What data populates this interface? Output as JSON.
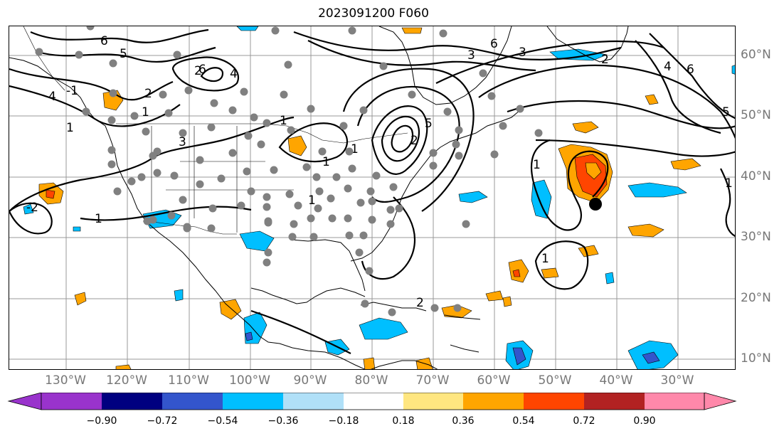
{
  "title": "2023091200 F060",
  "map": {
    "lon_labels": [
      "130°W",
      "120°W",
      "110°W",
      "100°W",
      "90°W",
      "80°W",
      "70°W",
      "60°W",
      "50°W",
      "40°W",
      "30°W"
    ],
    "lat_labels": [
      "60°N",
      "50°N",
      "40°N",
      "30°N",
      "20°N",
      "10°N"
    ],
    "contour_labels": [
      "6",
      "5",
      "4",
      "3",
      "2",
      "1",
      "-1",
      "-2",
      "3",
      "4",
      "2",
      "6",
      "5",
      "1",
      "6",
      "1",
      "1",
      "1",
      "2",
      "4",
      "6",
      "2",
      "5",
      "1",
      "1",
      "1",
      "1",
      "1",
      "3",
      "2"
    ],
    "colors": {
      "contour": "#000000",
      "gridlines": "#999999",
      "stations": "#808080",
      "marker": "#000000",
      "land_outline": "#000000"
    }
  },
  "colorbar": {
    "labels": [
      "−0.90",
      "−0.72",
      "−0.54",
      "−0.36",
      "−0.18",
      "0.18",
      "0.36",
      "0.54",
      "0.72",
      "0.90"
    ],
    "colors": [
      "#9933cc",
      "#000080",
      "#3355cc",
      "#00bfff",
      "#b0e0f8",
      "#ffffff",
      "#ffe680",
      "#ffa500",
      "#ff4500",
      "#b22222",
      "#ff88aa"
    ],
    "extend": "both"
  }
}
